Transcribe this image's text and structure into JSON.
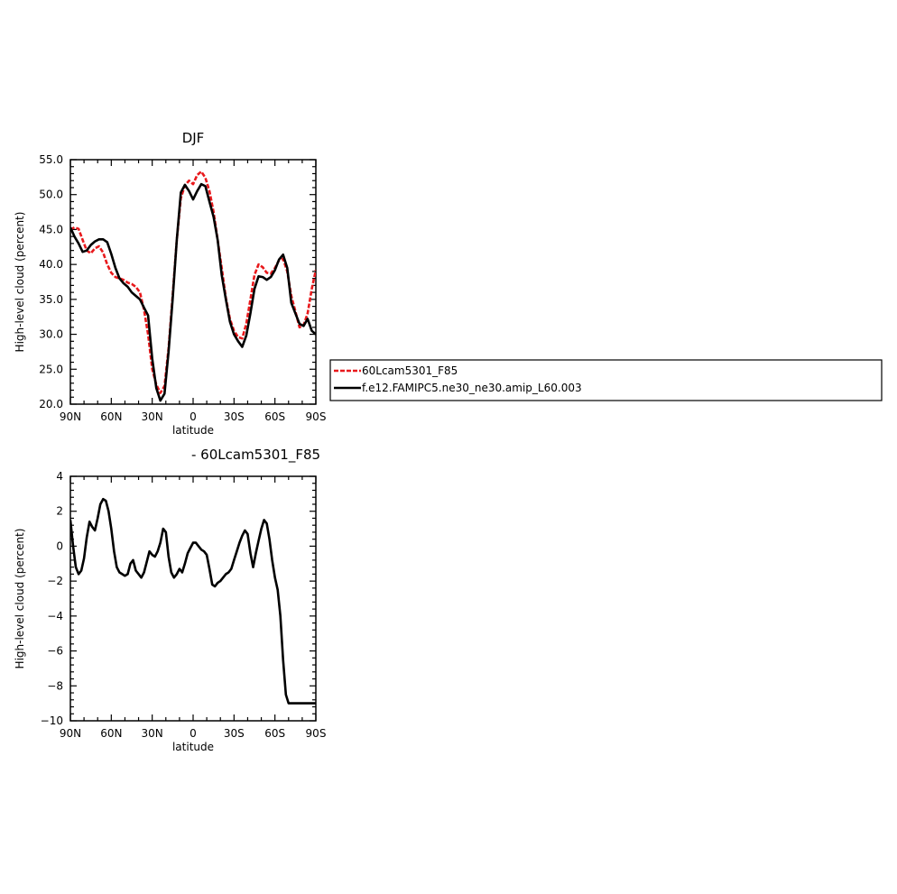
{
  "chart_data": [
    {
      "type": "line",
      "title": "DJF",
      "xlabel": "latitude",
      "ylabel": "High-level cloud (percent)",
      "xlim": [
        90,
        -90
      ],
      "ylim": [
        20,
        55
      ],
      "x_ticks": [
        90,
        60,
        30,
        0,
        -30,
        -60,
        -90
      ],
      "x_tick_labels": [
        "90N",
        "60N",
        "30N",
        "0",
        "30S",
        "60S",
        "90S"
      ],
      "y_ticks": [
        20,
        25,
        30,
        35,
        40,
        45,
        50,
        55
      ],
      "y_tick_labels": [
        "20.0",
        "25.0",
        "30.0",
        "35.0",
        "40.0",
        "45.0",
        "50.0",
        "55.0"
      ],
      "legend_position": "right",
      "series": [
        {
          "name": "60Lcam5301_F85",
          "color": "#e8191c",
          "dash": "dashed",
          "x": [
            90,
            87,
            84,
            81,
            78,
            75,
            72,
            69,
            66,
            63,
            60,
            57,
            54,
            51,
            48,
            45,
            42,
            39,
            36,
            33,
            30,
            27,
            24,
            21,
            18,
            15,
            12,
            9,
            6,
            3,
            0,
            -3,
            -6,
            -9,
            -12,
            -15,
            -18,
            -21,
            -24,
            -27,
            -30,
            -33,
            -36,
            -39,
            -42,
            -45,
            -48,
            -51,
            -54,
            -57,
            -60,
            -63,
            -66,
            -69,
            -72,
            -75,
            -78,
            -81,
            -84,
            -87,
            -90
          ],
          "values": [
            45.0,
            45.3,
            45.1,
            43.5,
            42.0,
            41.6,
            42.3,
            42.6,
            41.7,
            40.0,
            38.8,
            38.2,
            38.0,
            37.8,
            37.4,
            37.2,
            36.8,
            36.0,
            33.5,
            30.0,
            25.0,
            22.8,
            21.6,
            22.6,
            28.0,
            35.5,
            43.5,
            49.5,
            51.3,
            52.0,
            51.5,
            52.8,
            53.3,
            52.4,
            50.5,
            47.5,
            43.5,
            39.5,
            35.2,
            32.2,
            30.5,
            29.6,
            29.4,
            31.5,
            35.0,
            38.5,
            40.0,
            39.6,
            38.8,
            38.7,
            39.5,
            40.6,
            40.8,
            39.0,
            35.5,
            33.3,
            31.0,
            31.3,
            33.0,
            36.5,
            39.2
          ]
        },
        {
          "name": "f.e12.FAMIPC5.ne30_ne30.amip_L60.003",
          "color": "#000000",
          "dash": "solid",
          "x": [
            90,
            87,
            84,
            81,
            78,
            75,
            72,
            69,
            66,
            63,
            60,
            57,
            54,
            51,
            48,
            45,
            42,
            39,
            36,
            33,
            30,
            27,
            24,
            21,
            18,
            15,
            12,
            9,
            6,
            3,
            0,
            -3,
            -6,
            -9,
            -12,
            -15,
            -18,
            -21,
            -24,
            -27,
            -30,
            -33,
            -36,
            -39,
            -42,
            -45,
            -48,
            -51,
            -54,
            -57,
            -60,
            -63,
            -66,
            -69,
            -72,
            -75,
            -78,
            -81,
            -84,
            -87,
            -90
          ],
          "values": [
            45.3,
            44.0,
            43.0,
            41.8,
            42.0,
            42.8,
            43.3,
            43.6,
            43.6,
            43.2,
            41.5,
            39.5,
            38.0,
            37.3,
            36.8,
            36.0,
            35.5,
            35.0,
            33.8,
            32.7,
            26.5,
            22.3,
            20.5,
            21.5,
            27.5,
            35.0,
            43.5,
            50.3,
            51.4,
            50.5,
            49.3,
            50.5,
            51.5,
            51.2,
            49.0,
            46.8,
            43.5,
            38.5,
            35.0,
            31.8,
            30.0,
            29.0,
            28.2,
            29.8,
            33.0,
            36.5,
            38.3,
            38.2,
            37.8,
            38.2,
            39.2,
            40.7,
            41.4,
            39.5,
            34.5,
            33.0,
            31.5,
            31.2,
            32.2,
            30.5,
            30.0
          ]
        }
      ]
    },
    {
      "type": "line",
      "title": "- 60Lcam5301_F85",
      "xlabel": "latitude",
      "ylabel": "High-level cloud (percent)",
      "xlim": [
        90,
        -90
      ],
      "ylim": [
        -10,
        4
      ],
      "x_ticks": [
        90,
        60,
        30,
        0,
        -30,
        -60,
        -90
      ],
      "x_tick_labels": [
        "90N",
        "60N",
        "30N",
        "0",
        "30S",
        "60S",
        "90S"
      ],
      "y_ticks": [
        -10,
        -8,
        -6,
        -4,
        -2,
        0,
        2,
        4
      ],
      "y_tick_labels": [
        "−10",
        "−8",
        "−6",
        "−4",
        "−2",
        "0",
        "2",
        "4"
      ],
      "series": [
        {
          "color": "#000000",
          "dash": "solid",
          "x": [
            90,
            88,
            86,
            84,
            82,
            80,
            78,
            76,
            74,
            72,
            70,
            68,
            66,
            64,
            62,
            60,
            58,
            56,
            54,
            52,
            50,
            48,
            46,
            44,
            42,
            40,
            38,
            36,
            34,
            32,
            30,
            28,
            26,
            24,
            22,
            20,
            18,
            16,
            14,
            12,
            10,
            8,
            6,
            4,
            2,
            0,
            -2,
            -4,
            -6,
            -8,
            -10,
            -12,
            -14,
            -16,
            -18,
            -20,
            -22,
            -24,
            -26,
            -28,
            -30,
            -32,
            -34,
            -36,
            -38,
            -40,
            -42,
            -44,
            -46,
            -48,
            -50,
            -52,
            -54,
            -56,
            -58,
            -60,
            -62,
            -64,
            -66,
            -68,
            -70,
            -72,
            -74,
            -76,
            -78,
            -80,
            -82,
            -84,
            -86,
            -88,
            -90
          ],
          "values": [
            1.5,
            0.0,
            -1.2,
            -1.6,
            -1.4,
            -0.7,
            0.5,
            1.4,
            1.1,
            0.9,
            1.6,
            2.4,
            2.7,
            2.6,
            2.0,
            1.0,
            -0.3,
            -1.2,
            -1.5,
            -1.6,
            -1.7,
            -1.6,
            -1.0,
            -0.8,
            -1.4,
            -1.6,
            -1.8,
            -1.5,
            -0.9,
            -0.3,
            -0.5,
            -0.6,
            -0.3,
            0.2,
            1.0,
            0.8,
            -0.6,
            -1.5,
            -1.8,
            -1.6,
            -1.3,
            -1.5,
            -1.0,
            -0.4,
            -0.1,
            0.2,
            0.2,
            0.0,
            -0.2,
            -0.3,
            -0.5,
            -1.3,
            -2.2,
            -2.3,
            -2.1,
            -2.0,
            -1.8,
            -1.6,
            -1.5,
            -1.3,
            -0.8,
            -0.3,
            0.2,
            0.6,
            0.9,
            0.7,
            -0.4,
            -1.2,
            -0.4,
            0.3,
            1.0,
            1.5,
            1.3,
            0.4,
            -0.8,
            -1.8,
            -2.5,
            -4.0,
            -6.5,
            -8.5,
            -9.0,
            -9.0,
            -9.0,
            -9.0,
            -9.0,
            -9.0,
            -9.0,
            -9.0,
            -9.0,
            -9.0,
            -9.0
          ]
        }
      ]
    }
  ]
}
